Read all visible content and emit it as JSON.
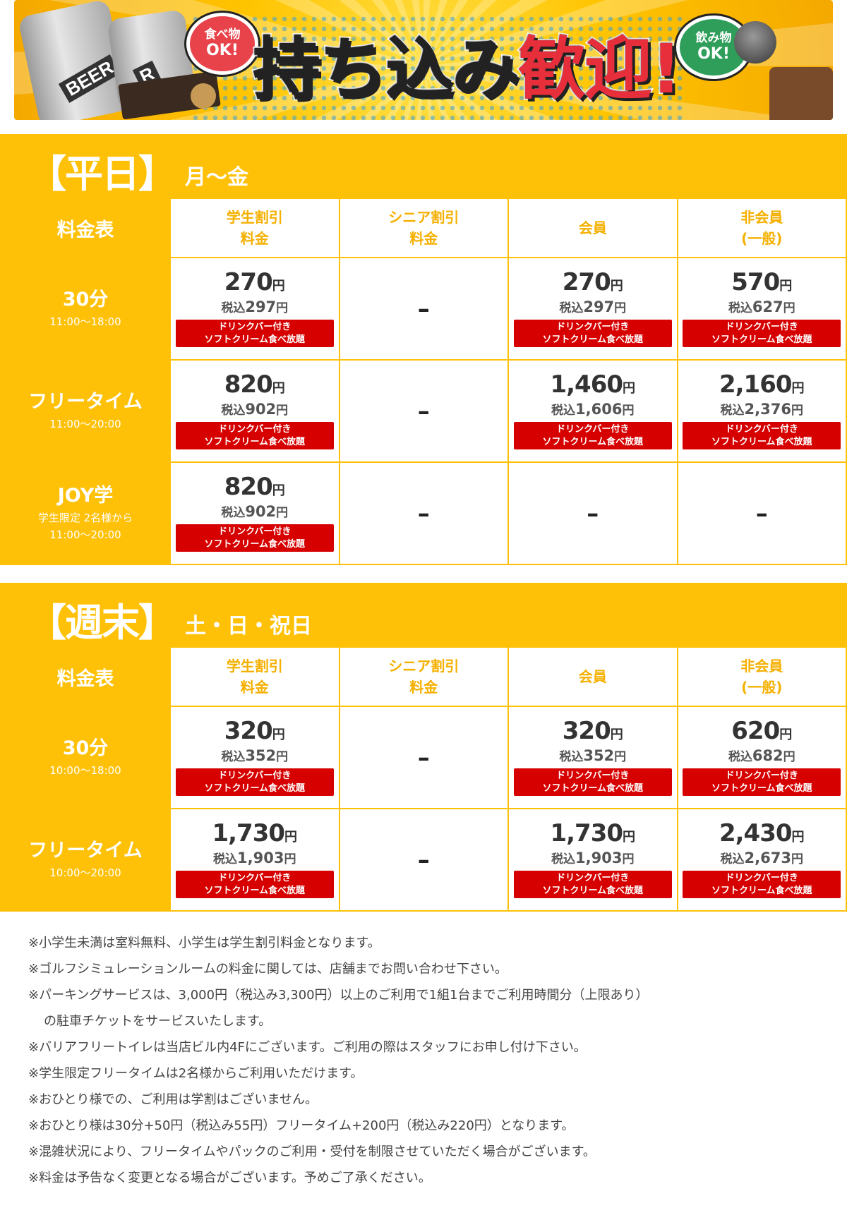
{
  "banner": {
    "headline_black": "持ち込み",
    "headline_red": "歓迎!",
    "food_bubble_line1": "食べ物",
    "food_bubble_line2": "OK!",
    "drink_bubble_line1": "飲み物",
    "drink_bubble_line2": "OK!",
    "can_label_1": "BEER",
    "can_label_2": "R"
  },
  "columns": [
    {
      "line1": "学生割引",
      "line2": "料金"
    },
    {
      "line1": "シニア割引",
      "line2": "料金"
    },
    {
      "line1": "会員",
      "line2": ""
    },
    {
      "line1": "非会員",
      "line2": "(一般)"
    }
  ],
  "corner_label": "料金表",
  "badge": {
    "line1": "ドリンクバー付き",
    "line2": "ソフトクリーム食べ放題"
  },
  "dash": "–",
  "yen": "円",
  "tax_prefix": "税込",
  "weekday": {
    "title": "【平日】",
    "subtitle": "月～金",
    "rows": [
      {
        "name": "30分",
        "sub1": "11:00～18:00",
        "sub2": "",
        "cells": [
          {
            "price": "270",
            "tax": "297"
          },
          null,
          {
            "price": "270",
            "tax": "297"
          },
          {
            "price": "570",
            "tax": "627"
          }
        ]
      },
      {
        "name": "フリータイム",
        "sub1": "11:00～20:00",
        "sub2": "",
        "cells": [
          {
            "price": "820",
            "tax": "902"
          },
          null,
          {
            "price": "1,460",
            "tax": "1,606"
          },
          {
            "price": "2,160",
            "tax": "2,376"
          }
        ]
      },
      {
        "name": "JOY学",
        "sub1": "学生限定 2名様から",
        "sub2": "11:00～20:00",
        "cells": [
          {
            "price": "820",
            "tax": "902"
          },
          null,
          null,
          null
        ]
      }
    ]
  },
  "weekend": {
    "title": "【週末】",
    "subtitle": "土・日・祝日",
    "rows": [
      {
        "name": "30分",
        "sub1": "10:00～18:00",
        "sub2": "",
        "cells": [
          {
            "price": "320",
            "tax": "352"
          },
          null,
          {
            "price": "320",
            "tax": "352"
          },
          {
            "price": "620",
            "tax": "682"
          }
        ]
      },
      {
        "name": "フリータイム",
        "sub1": "10:00～20:00",
        "sub2": "",
        "cells": [
          {
            "price": "1,730",
            "tax": "1,903"
          },
          null,
          {
            "price": "1,730",
            "tax": "1,903"
          },
          {
            "price": "2,430",
            "tax": "2,673"
          }
        ]
      }
    ]
  },
  "notes": [
    "※小学生未満は室料無料、小学生は学生割引料金となります。",
    "※ゴルフシミュレーションルームの料金に関しては、店舗までお問い合わせ下さい。",
    "※パーキングサービスは、3,000円（税込み3,300円）以上のご利用で1組1台までご利用時間分（上限あり）",
    "の駐車チケットをサービスいたします。",
    "※バリアフリートイレは当店ビル内4Fにございます。ご利用の際はスタッフにお申し付け下さい。",
    "※学生限定フリータイムは2名様からご利用いただけます。",
    "※おひとり様での、ご利用は学割はございません。",
    "※おひとり様は30分+50円（税込み55円）フリータイム+200円（税込み220円）となります。",
    "※混雑状況により、フリータイムやパックのご利用・受付を制限させていただく場合がございます。",
    "※料金は予告なく変更となる場合がございます。予めご了承ください。"
  ]
}
